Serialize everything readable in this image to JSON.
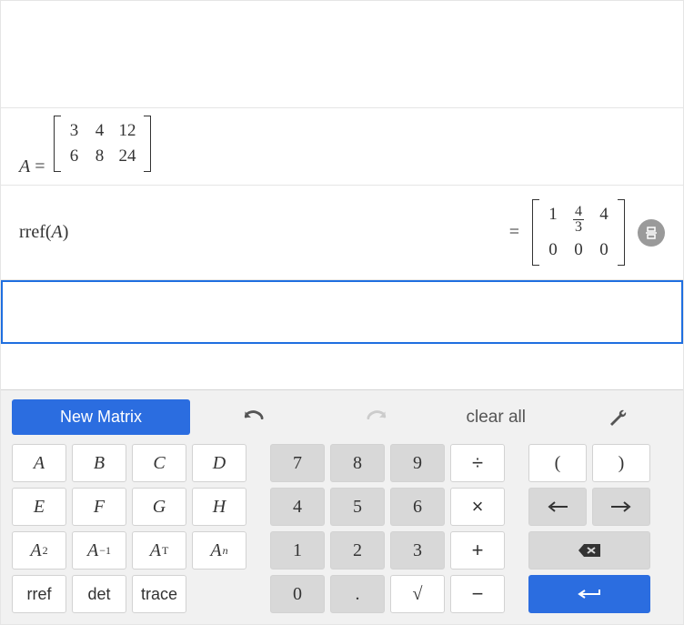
{
  "definition": {
    "var_name": "A",
    "rows": [
      [
        "3",
        "4",
        "12"
      ],
      [
        "6",
        "8",
        "24"
      ]
    ]
  },
  "expression": {
    "func": "rref",
    "arg": "A",
    "result_rows": [
      [
        {
          "t": "n",
          "v": "1"
        },
        {
          "t": "f",
          "n": "4",
          "d": "3"
        },
        {
          "t": "n",
          "v": "4"
        }
      ],
      [
        {
          "t": "n",
          "v": "0"
        },
        {
          "t": "n",
          "v": "0"
        },
        {
          "t": "n",
          "v": "0"
        }
      ]
    ]
  },
  "toolbar": {
    "new_matrix": "New Matrix",
    "clear_all": "clear all"
  },
  "keys": {
    "vars": [
      "A",
      "B",
      "C",
      "D",
      "E",
      "F",
      "G",
      "H"
    ],
    "pow_labels": {
      "sq": "2",
      "inv": "−1",
      "trans": "T",
      "n": "n"
    },
    "funcs": {
      "rref": "rref",
      "det": "det",
      "trace": "trace"
    },
    "digits": {
      "7": "7",
      "8": "8",
      "9": "9",
      "4": "4",
      "5": "5",
      "6": "6",
      "1": "1",
      "2": "2",
      "3": "3",
      "0": "0",
      "dot": "."
    },
    "ops": {
      "div": "÷",
      "mul": "×",
      "add": "+",
      "sub": "−",
      "sqrt": "√"
    },
    "parens": {
      "open": "(",
      "close": ")"
    }
  },
  "colors": {
    "primary": "#2b6de0",
    "key_bg": "#ffffff",
    "key_shaded": "#d8d8d8",
    "panel_bg": "#f1f1f1",
    "border": "#d2d2d2"
  }
}
